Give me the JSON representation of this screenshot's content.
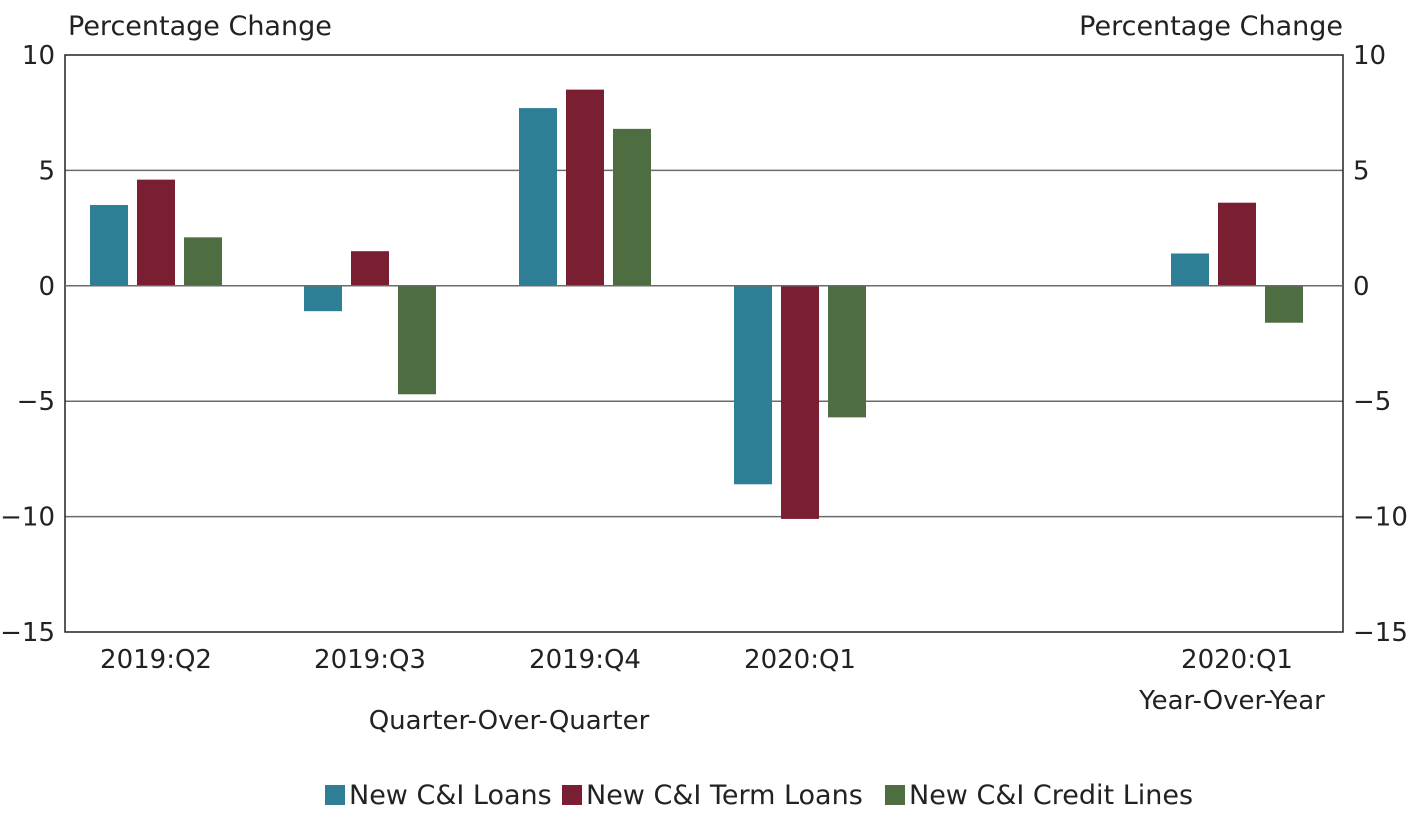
{
  "chart_data": {
    "type": "bar",
    "y_axis_title_left": "Percentage Change",
    "y_axis_title_right": "Percentage Change",
    "ylim": [
      -15,
      10
    ],
    "yticks": [
      10,
      5,
      0,
      -5,
      -10,
      -15
    ],
    "ytick_labels": [
      "10",
      "5",
      "0",
      "−5",
      "−10",
      "−15"
    ],
    "grid": true,
    "legend_position": "bottom",
    "categories": [
      "2019:Q2",
      "2019:Q3",
      "2019:Q4",
      "2020:Q1",
      "2020:Q1"
    ],
    "group_labels": [
      {
        "text": "Quarter-Over-Quarter",
        "spans": [
          0,
          3
        ]
      },
      {
        "text": "Year-Over-Year",
        "spans": [
          4,
          4
        ]
      }
    ],
    "series": [
      {
        "name": "New C&I Loans",
        "color": "#2e7f95",
        "values": [
          3.5,
          -1.1,
          7.7,
          -8.6,
          1.4
        ]
      },
      {
        "name": "New C&I Term Loans",
        "color": "#7a1e32",
        "values": [
          4.6,
          1.5,
          8.5,
          -10.1,
          3.6
        ]
      },
      {
        "name": "New C&I Credit Lines",
        "color": "#4e6e42",
        "values": [
          2.1,
          -4.7,
          6.8,
          -5.7,
          -1.6
        ]
      }
    ]
  }
}
